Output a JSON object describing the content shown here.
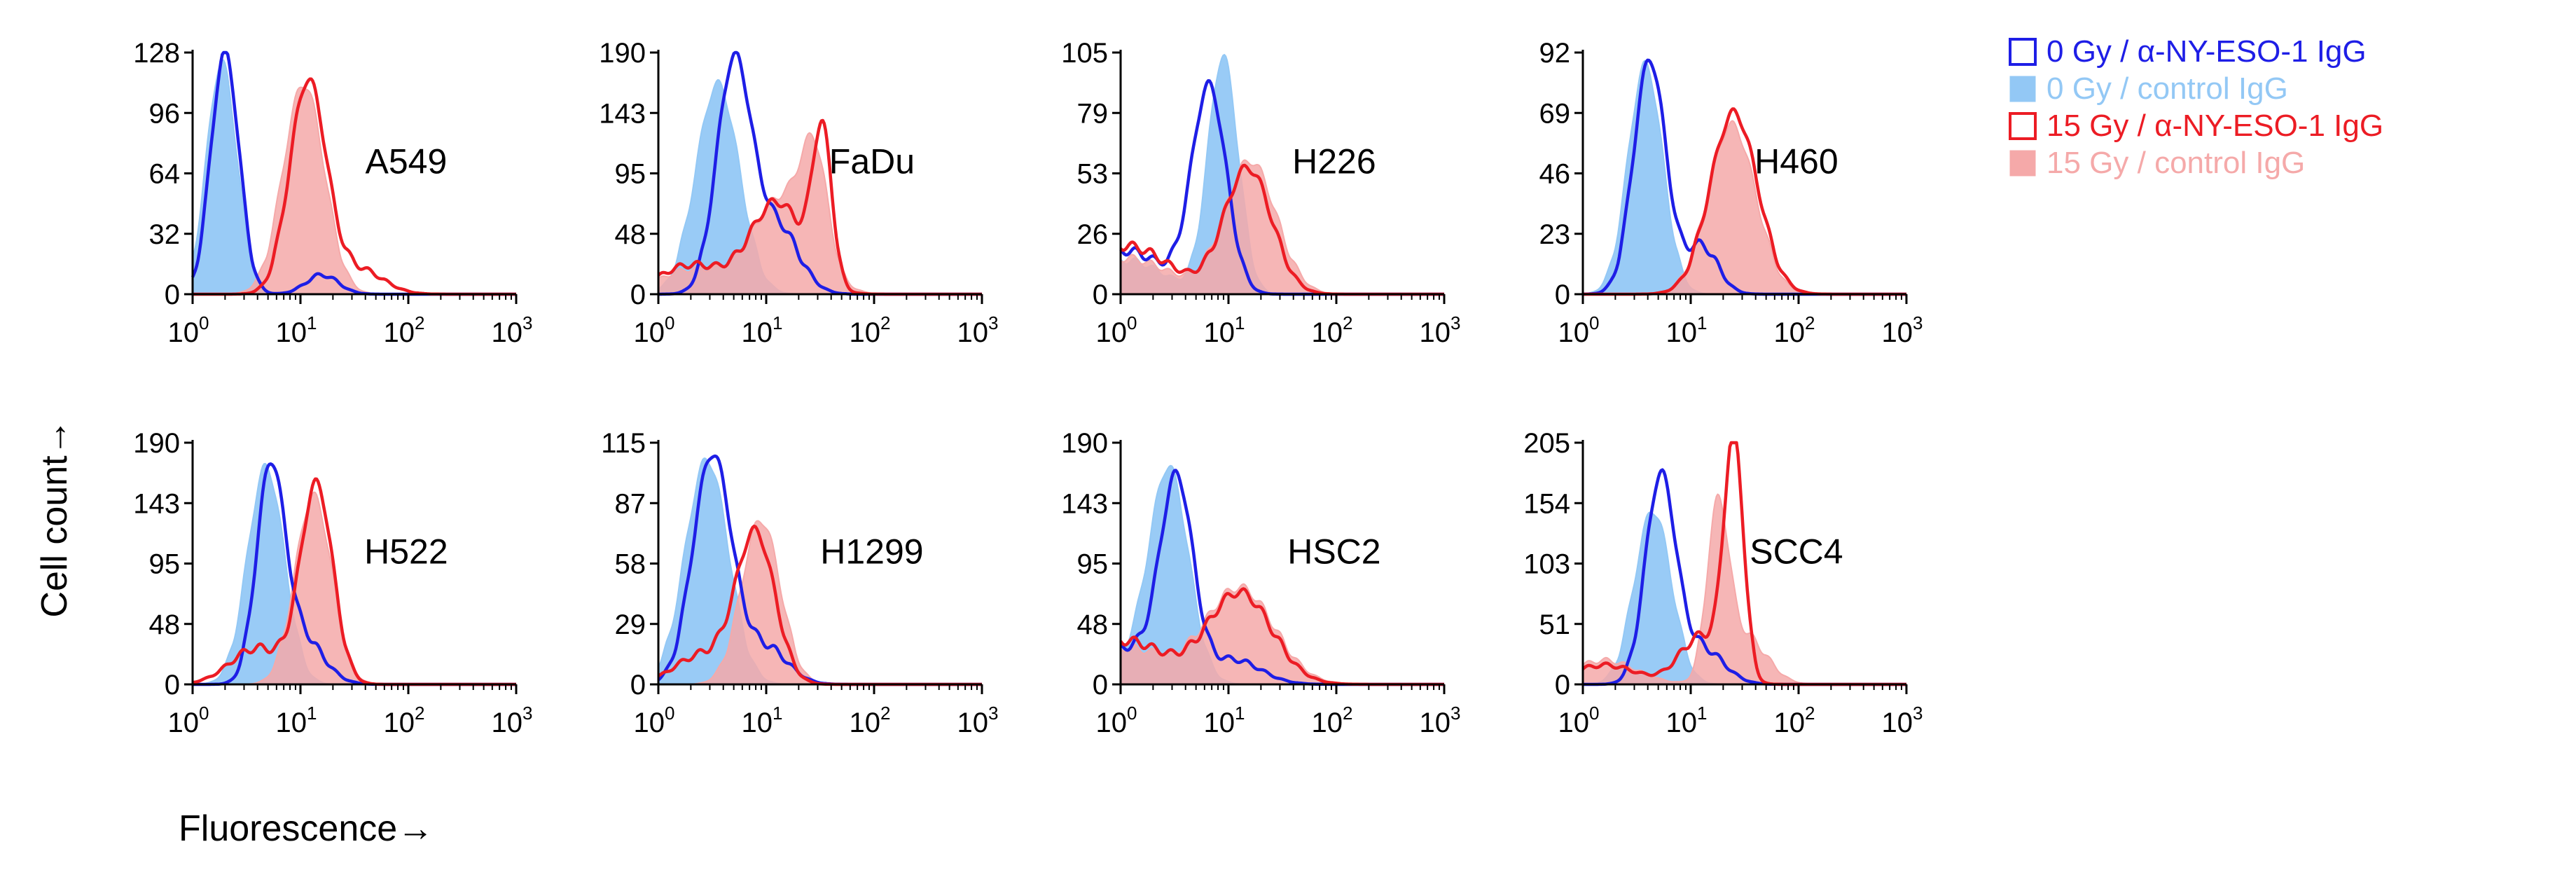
{
  "chart_data": {
    "type": "area",
    "description_x_axis": "log10 fluorescence; each panel spans 10^0 to 10^3",
    "xlabel": "Fluorescence→",
    "ylabel": "Cell count→",
    "x_tick_base": "10",
    "x_tick_exponents": [
      "0",
      "1",
      "2",
      "3"
    ],
    "xlim_log10": [
      0,
      3
    ],
    "legend": [
      {
        "label": "0 Gy / α-NY-ESO-1 IgG",
        "style": "outline",
        "color": "#1e1ee6"
      },
      {
        "label": "0 Gy / control IgG",
        "style": "filled",
        "color": "#93c8f5"
      },
      {
        "label": "15 Gy / α-NY-ESO-1 IgG",
        "style": "outline",
        "color": "#ec1c24"
      },
      {
        "label": "15 Gy / control IgG",
        "style": "filled",
        "color": "#f5a9a9"
      }
    ],
    "panels": [
      {
        "name": "A549",
        "yticks": [
          "0",
          "32",
          "64",
          "96",
          "128"
        ],
        "ymax": 128,
        "series": [
          {
            "key": "s0a",
            "peaks": [
              [
                0.3,
                0.13,
                1.0
              ],
              [
                1.2,
                0.15,
                0.08
              ]
            ]
          },
          {
            "key": "s0c",
            "peaks": [
              [
                0.27,
                0.14,
                0.96
              ]
            ]
          },
          {
            "key": "s15a",
            "peaks": [
              [
                1.07,
                0.17,
                0.88
              ],
              [
                1.55,
                0.22,
                0.1
              ]
            ]
          },
          {
            "key": "s15c",
            "peaks": [
              [
                1.03,
                0.19,
                0.87
              ]
            ]
          }
        ]
      },
      {
        "name": "FaDu",
        "yticks": [
          "0",
          "48",
          "95",
          "143",
          "190"
        ],
        "ymax": 190,
        "series": [
          {
            "key": "s0a",
            "peaks": [
              [
                0.7,
                0.16,
                0.95
              ],
              [
                1.1,
                0.2,
                0.28
              ]
            ]
          },
          {
            "key": "s0c",
            "peaks": [
              [
                0.55,
                0.2,
                0.87
              ]
            ]
          },
          {
            "key": "s15a",
            "peaks": [
              [
                0.3,
                0.3,
                0.12
              ],
              [
                1.1,
                0.25,
                0.38
              ],
              [
                1.52,
                0.09,
                0.62
              ]
            ]
          },
          {
            "key": "s15c",
            "peaks": [
              [
                0.3,
                0.3,
                0.1
              ],
              [
                1.15,
                0.28,
                0.4
              ],
              [
                1.45,
                0.12,
                0.42
              ]
            ]
          }
        ]
      },
      {
        "name": "H226",
        "yticks": [
          "0",
          "26",
          "53",
          "79",
          "105"
        ],
        "ymax": 105,
        "series": [
          {
            "key": "s0a",
            "peaks": [
              [
                0.05,
                0.35,
                0.18
              ],
              [
                0.82,
                0.16,
                0.85
              ]
            ]
          },
          {
            "key": "s0c",
            "peaks": [
              [
                0.05,
                0.35,
                0.14
              ],
              [
                0.95,
                0.14,
                0.98
              ]
            ]
          },
          {
            "key": "s15a",
            "peaks": [
              [
                0.05,
                0.4,
                0.2
              ],
              [
                1.18,
                0.22,
                0.52
              ]
            ]
          },
          {
            "key": "s15c",
            "peaks": [
              [
                0.05,
                0.4,
                0.15
              ],
              [
                1.2,
                0.24,
                0.55
              ]
            ]
          }
        ]
      },
      {
        "name": "H460",
        "yticks": [
          "0",
          "23",
          "46",
          "69",
          "92"
        ],
        "ymax": 92,
        "series": [
          {
            "key": "s0a",
            "peaks": [
              [
                0.62,
                0.15,
                0.97
              ],
              [
                1.1,
                0.15,
                0.2
              ]
            ]
          },
          {
            "key": "s0c",
            "peaks": [
              [
                0.58,
                0.16,
                0.95
              ]
            ]
          },
          {
            "key": "s15a",
            "peaks": [
              [
                1.4,
                0.22,
                0.75
              ]
            ]
          },
          {
            "key": "s15c",
            "peaks": [
              [
                1.38,
                0.22,
                0.7
              ]
            ]
          }
        ]
      },
      {
        "name": "H522",
        "yticks": [
          "0",
          "48",
          "95",
          "143",
          "190"
        ],
        "ymax": 190,
        "series": [
          {
            "key": "s0a",
            "peaks": [
              [
                0.72,
                0.13,
                0.85
              ],
              [
                1.0,
                0.2,
                0.2
              ]
            ]
          },
          {
            "key": "s0c",
            "peaks": [
              [
                0.68,
                0.17,
                0.9
              ]
            ]
          },
          {
            "key": "s15a",
            "peaks": [
              [
                1.15,
                0.15,
                0.82
              ],
              [
                0.6,
                0.25,
                0.15
              ]
            ]
          },
          {
            "key": "s15c",
            "peaks": [
              [
                1.12,
                0.17,
                0.78
              ]
            ]
          }
        ]
      },
      {
        "name": "H1299",
        "yticks": [
          "0",
          "29",
          "58",
          "87",
          "115"
        ],
        "ymax": 115,
        "series": [
          {
            "key": "s0a",
            "peaks": [
              [
                0.5,
                0.18,
                0.95
              ],
              [
                1.0,
                0.2,
                0.15
              ]
            ]
          },
          {
            "key": "s0c",
            "peaks": [
              [
                0.45,
                0.2,
                0.93
              ]
            ]
          },
          {
            "key": "s15a",
            "peaks": [
              [
                0.9,
                0.18,
                0.62
              ],
              [
                0.4,
                0.25,
                0.12
              ]
            ]
          },
          {
            "key": "s15c",
            "peaks": [
              [
                0.95,
                0.18,
                0.68
              ]
            ]
          }
        ]
      },
      {
        "name": "HSC2",
        "yticks": [
          "0",
          "48",
          "95",
          "143",
          "190"
        ],
        "ymax": 190,
        "series": [
          {
            "key": "s0a",
            "peaks": [
              [
                0.52,
                0.15,
                0.8
              ],
              [
                0.05,
                0.35,
                0.15
              ],
              [
                1.05,
                0.25,
                0.1
              ]
            ]
          },
          {
            "key": "s0c",
            "peaks": [
              [
                0.45,
                0.18,
                0.85
              ],
              [
                0.05,
                0.35,
                0.1
              ]
            ]
          },
          {
            "key": "s15a",
            "peaks": [
              [
                1.1,
                0.3,
                0.38
              ],
              [
                0.05,
                0.35,
                0.18
              ]
            ]
          },
          {
            "key": "s15c",
            "peaks": [
              [
                1.1,
                0.32,
                0.4
              ],
              [
                0.05,
                0.35,
                0.15
              ]
            ]
          }
        ]
      },
      {
        "name": "SCC4",
        "yticks": [
          "0",
          "51",
          "103",
          "154",
          "205"
        ],
        "ymax": 205,
        "series": [
          {
            "key": "s0a",
            "peaks": [
              [
                0.72,
                0.14,
                0.85
              ],
              [
                1.1,
                0.2,
                0.15
              ]
            ]
          },
          {
            "key": "s0c",
            "peaks": [
              [
                0.65,
                0.17,
                0.72
              ]
            ]
          },
          {
            "key": "s15a",
            "peaks": [
              [
                1.4,
                0.09,
                0.98
              ],
              [
                1.1,
                0.2,
                0.2
              ],
              [
                0.2,
                0.3,
                0.08
              ]
            ]
          },
          {
            "key": "s15c",
            "peaks": [
              [
                1.25,
                0.1,
                0.68
              ],
              [
                1.5,
                0.2,
                0.2
              ],
              [
                0.2,
                0.3,
                0.1
              ]
            ]
          }
        ]
      }
    ]
  }
}
